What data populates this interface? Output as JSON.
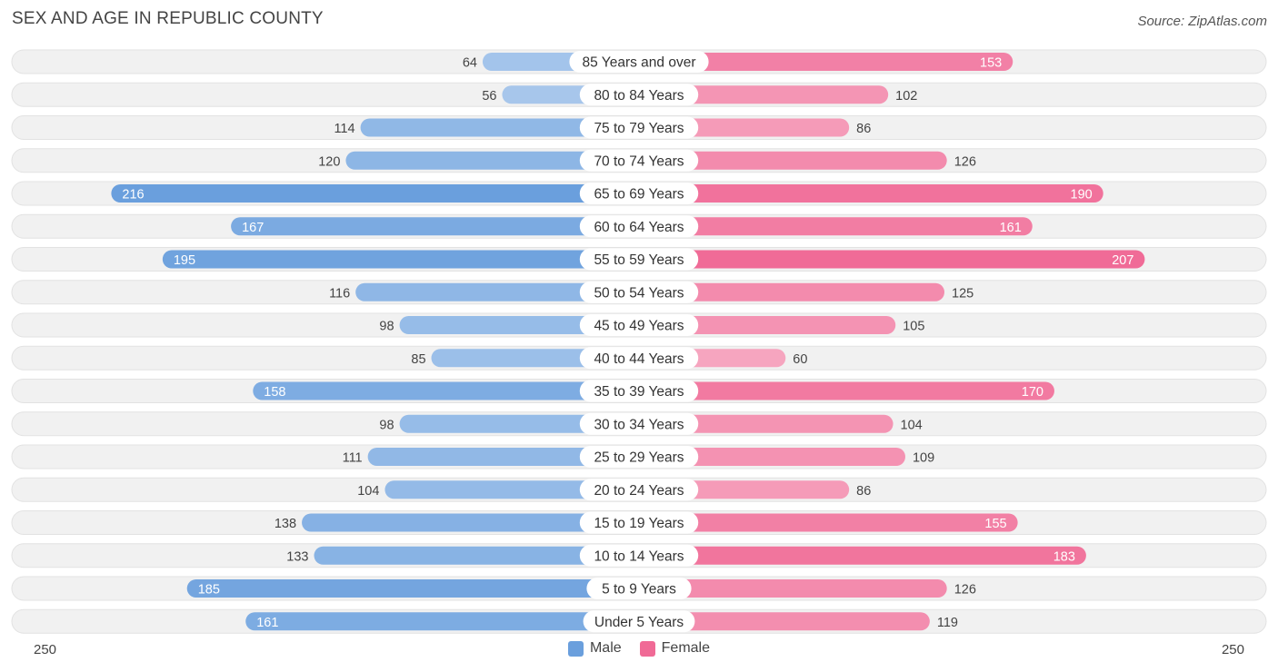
{
  "title": "SEX AND AGE IN REPUBLIC COUNTY",
  "source": "Source: ZipAtlas.com",
  "colors": {
    "male": "#6a9fdd",
    "male_light": "#a9c8ec",
    "female": "#f06a96",
    "female_light": "#f6a9c2",
    "row_bg": "#f1f1f1"
  },
  "legend": {
    "male": "Male",
    "female": "Female"
  },
  "axis": {
    "left_label": "250",
    "right_label": "250"
  },
  "chart_data": {
    "type": "bar",
    "orientation": "horizontal-diverging",
    "xlim": [
      -250,
      250
    ],
    "categories": [
      "85 Years and over",
      "80 to 84 Years",
      "75 to 79 Years",
      "70 to 74 Years",
      "65 to 69 Years",
      "60 to 64 Years",
      "55 to 59 Years",
      "50 to 54 Years",
      "45 to 49 Years",
      "40 to 44 Years",
      "35 to 39 Years",
      "30 to 34 Years",
      "25 to 29 Years",
      "20 to 24 Years",
      "15 to 19 Years",
      "10 to 14 Years",
      "5 to 9 Years",
      "Under 5 Years"
    ],
    "series": [
      {
        "name": "Male",
        "values": [
          64,
          56,
          114,
          120,
          216,
          167,
          195,
          116,
          98,
          85,
          158,
          98,
          111,
          104,
          138,
          133,
          185,
          161
        ]
      },
      {
        "name": "Female",
        "values": [
          153,
          102,
          86,
          126,
          190,
          161,
          207,
          125,
          105,
          60,
          170,
          104,
          109,
          86,
          155,
          183,
          126,
          119
        ]
      }
    ],
    "legend_position": "bottom-center"
  }
}
